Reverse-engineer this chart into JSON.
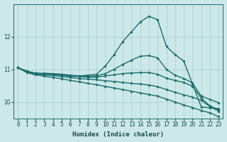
{
  "xlabel": "Humidex (Indice chaleur)",
  "ylabel": "",
  "bg_color": "#cce8e8",
  "line_color": "#1a6e6e",
  "grid_color": "#aacece",
  "xlim": [
    -0.5,
    23.5
  ],
  "ylim": [
    9.5,
    13.0
  ],
  "yticks": [
    10,
    11,
    12
  ],
  "xticks": [
    0,
    1,
    2,
    3,
    4,
    5,
    6,
    7,
    8,
    9,
    10,
    11,
    12,
    13,
    14,
    15,
    16,
    17,
    18,
    19,
    20,
    21,
    22,
    23
  ],
  "lines": [
    {
      "x": [
        0,
        1,
        2,
        3,
        4,
        5,
        6,
        7,
        8,
        9,
        10,
        11,
        12,
        13,
        14,
        15,
        16,
        17,
        18,
        19,
        20,
        21,
        22,
        23
      ],
      "y": [
        11.05,
        10.95,
        10.88,
        10.88,
        10.87,
        10.85,
        10.82,
        10.8,
        10.82,
        10.85,
        11.1,
        11.45,
        11.85,
        12.15,
        12.45,
        12.62,
        12.52,
        11.7,
        11.45,
        11.25,
        10.55,
        9.85,
        9.82,
        9.8
      ],
      "linewidth": 1.0
    },
    {
      "x": [
        0,
        1,
        2,
        3,
        4,
        5,
        6,
        7,
        8,
        9,
        10,
        11,
        12,
        13,
        14,
        15,
        16,
        17,
        18,
        19,
        20,
        21,
        22,
        23
      ],
      "y": [
        11.05,
        10.93,
        10.88,
        10.86,
        10.85,
        10.83,
        10.8,
        10.79,
        10.79,
        10.8,
        10.87,
        11.0,
        11.15,
        11.28,
        11.4,
        11.42,
        11.35,
        11.0,
        10.82,
        10.72,
        10.58,
        10.18,
        10.08,
        9.98
      ],
      "linewidth": 1.0
    },
    {
      "x": [
        0,
        1,
        2,
        3,
        4,
        5,
        6,
        7,
        8,
        9,
        10,
        11,
        12,
        13,
        14,
        15,
        16,
        17,
        18,
        19,
        20,
        21,
        22,
        23
      ],
      "y": [
        11.05,
        10.93,
        10.88,
        10.86,
        10.84,
        10.82,
        10.79,
        10.78,
        10.76,
        10.76,
        10.8,
        10.83,
        10.87,
        10.89,
        10.9,
        10.9,
        10.85,
        10.73,
        10.66,
        10.6,
        10.48,
        10.12,
        9.88,
        9.76
      ],
      "linewidth": 1.0
    },
    {
      "x": [
        0,
        1,
        2,
        3,
        4,
        5,
        6,
        7,
        8,
        9,
        10,
        11,
        12,
        13,
        14,
        15,
        16,
        17,
        18,
        19,
        20,
        21,
        22,
        23
      ],
      "y": [
        11.05,
        10.92,
        10.86,
        10.83,
        10.81,
        10.78,
        10.75,
        10.72,
        10.7,
        10.68,
        10.65,
        10.63,
        10.6,
        10.57,
        10.55,
        10.52,
        10.47,
        10.38,
        10.3,
        10.22,
        10.15,
        10.05,
        9.86,
        9.72
      ],
      "linewidth": 1.0
    },
    {
      "x": [
        0,
        1,
        2,
        3,
        4,
        5,
        6,
        7,
        8,
        9,
        10,
        11,
        12,
        13,
        14,
        15,
        16,
        17,
        18,
        19,
        20,
        21,
        22,
        23
      ],
      "y": [
        11.05,
        10.9,
        10.83,
        10.79,
        10.75,
        10.71,
        10.66,
        10.62,
        10.57,
        10.53,
        10.48,
        10.43,
        10.38,
        10.33,
        10.28,
        10.23,
        10.18,
        10.09,
        10.0,
        9.91,
        9.83,
        9.74,
        9.67,
        9.55
      ],
      "linewidth": 1.0
    }
  ]
}
